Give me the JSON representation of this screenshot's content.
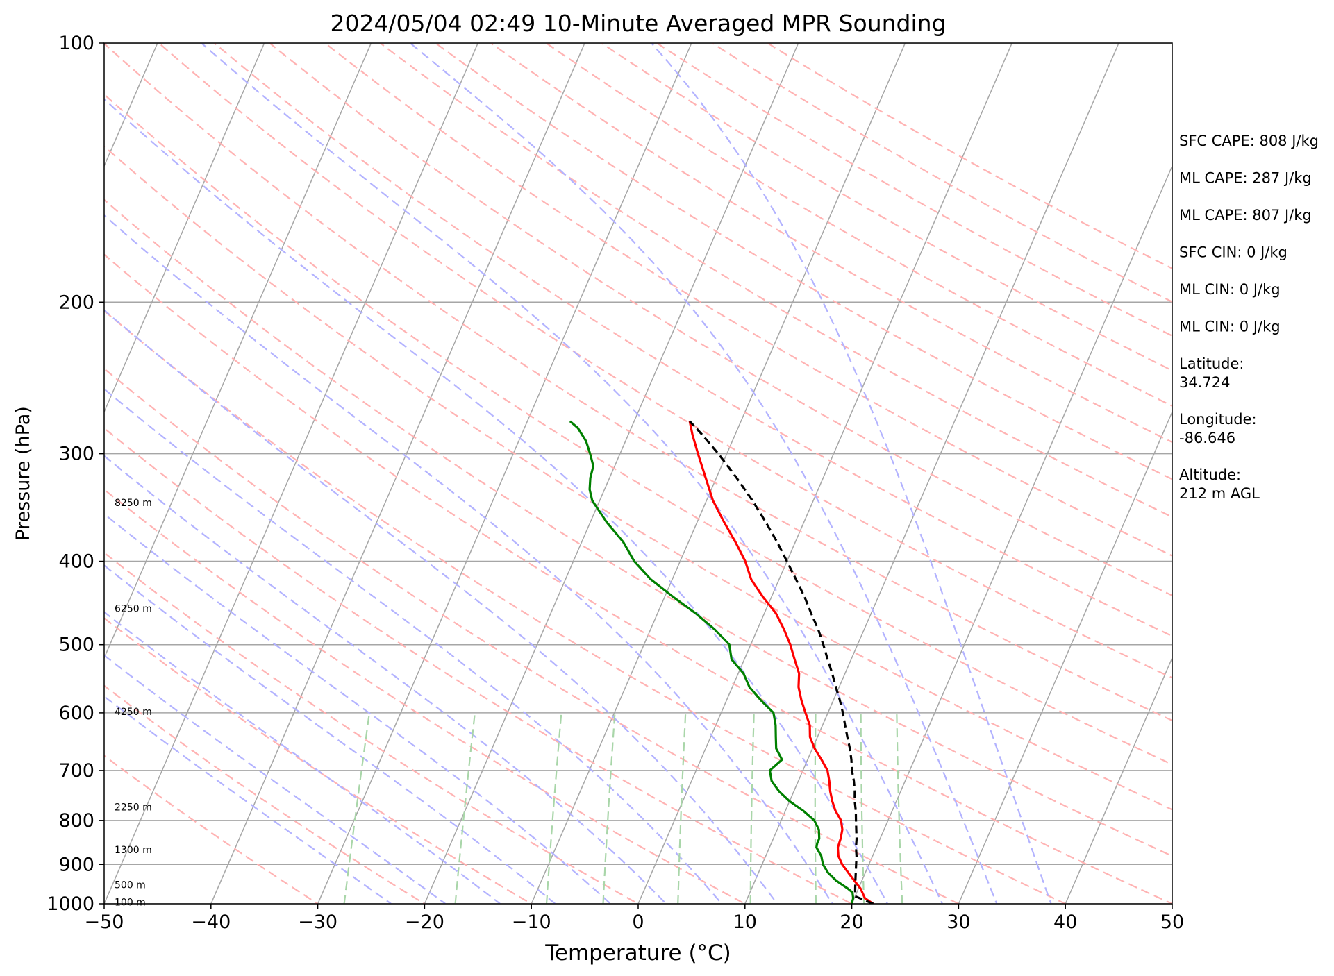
{
  "chart_data": {
    "type": "line",
    "chart_kind": "skew-t log-p",
    "title": "2024/05/04 02:49 10-Minute Averaged MPR Sounding",
    "xlabel": "Temperature (°C)",
    "ylabel": "Pressure (hPa)",
    "xlim": [
      -50,
      50
    ],
    "ylim": [
      1000,
      100
    ],
    "y_scale": "log",
    "grid": true,
    "x_ticks": [
      "−50",
      "−40",
      "−30",
      "−20",
      "−10",
      "0",
      "10",
      "20",
      "30",
      "40",
      "50"
    ],
    "y_ticks": [
      {
        "p": 1000,
        "label": "1000"
      },
      {
        "p": 900,
        "label": "900"
      },
      {
        "p": 800,
        "label": "800"
      },
      {
        "p": 700,
        "label": "700"
      },
      {
        "p": 600,
        "label": "600"
      },
      {
        "p": 500,
        "label": "500"
      },
      {
        "p": 400,
        "label": "400"
      },
      {
        "p": 300,
        "label": "300"
      },
      {
        "p": 200,
        "label": "200"
      },
      {
        "p": 100,
        "label": "100"
      }
    ],
    "height_labels": [
      {
        "p": 995,
        "label": "100 m"
      },
      {
        "p": 950,
        "label": "500 m"
      },
      {
        "p": 865,
        "label": "1300 m"
      },
      {
        "p": 772,
        "label": "2250 m"
      },
      {
        "p": 598,
        "label": "4250 m"
      },
      {
        "p": 454,
        "label": "6250 m"
      },
      {
        "p": 342,
        "label": "8250 m"
      }
    ],
    "series": [
      {
        "role": "temperature",
        "color": "#ff0000",
        "p": [
          1000,
          985,
          960,
          940,
          920,
          900,
          880,
          860,
          840,
          820,
          800,
          780,
          760,
          740,
          720,
          700,
          680,
          660,
          640,
          620,
          600,
          580,
          560,
          540,
          520,
          500,
          480,
          460,
          440,
          420,
          400,
          380,
          360,
          340,
          320,
          300,
          285,
          275
        ],
        "t": [
          22.0,
          21.0,
          20.2,
          19.3,
          18.4,
          17.5,
          16.8,
          16.4,
          16.3,
          16.1,
          15.6,
          14.7,
          14.0,
          13.4,
          12.9,
          12.3,
          11.3,
          10.2,
          9.3,
          8.8,
          7.9,
          7.0,
          6.2,
          5.7,
          4.7,
          3.7,
          2.5,
          1.1,
          -0.8,
          -2.6,
          -3.9,
          -5.6,
          -7.5,
          -9.4,
          -11.0,
          -12.7,
          -14.0,
          -14.8
        ]
      },
      {
        "role": "dewpoint",
        "color": "#008000",
        "p": [
          1000,
          985,
          970,
          960,
          940,
          920,
          900,
          880,
          860,
          850,
          840,
          820,
          800,
          780,
          760,
          740,
          720,
          700,
          680,
          660,
          640,
          620,
          600,
          580,
          560,
          540,
          520,
          500,
          480,
          460,
          440,
          420,
          400,
          380,
          360,
          340,
          330,
          320,
          310,
          300,
          290,
          280,
          275
        ],
        "t": [
          20.0,
          19.9,
          19.6,
          19.0,
          17.6,
          16.5,
          15.7,
          15.2,
          14.4,
          14.3,
          14.3,
          13.9,
          13.1,
          11.7,
          10.0,
          8.6,
          7.5,
          6.9,
          7.6,
          6.6,
          6.1,
          5.6,
          4.9,
          3.2,
          1.6,
          0.5,
          -1.2,
          -2.0,
          -4.0,
          -6.4,
          -9.2,
          -12.0,
          -14.3,
          -16.1,
          -18.5,
          -20.7,
          -21.4,
          -21.8,
          -22.0,
          -22.8,
          -23.7,
          -25.0,
          -26.0
        ]
      },
      {
        "role": "parcel",
        "color": "#000000",
        "style": "dashed",
        "p": [
          1000,
          980,
          960,
          940,
          920,
          900,
          880,
          860,
          840,
          820,
          800,
          780,
          760,
          740,
          720,
          700,
          680,
          660,
          640,
          620,
          600,
          580,
          560,
          540,
          520,
          500,
          480,
          460,
          440,
          420,
          400,
          380,
          360,
          340,
          320,
          300,
          285,
          275
        ],
        "t": [
          22.0,
          20.0,
          19.7,
          19.4,
          19.1,
          18.8,
          18.5,
          18.1,
          17.8,
          17.4,
          17.0,
          16.6,
          16.1,
          15.7,
          15.2,
          14.6,
          14.1,
          13.5,
          12.8,
          12.1,
          11.4,
          10.6,
          9.7,
          8.8,
          7.8,
          6.8,
          5.7,
          4.4,
          3.1,
          1.6,
          0.0,
          -1.7,
          -3.6,
          -5.7,
          -8.1,
          -10.8,
          -13.1,
          -14.8
        ]
      }
    ]
  },
  "side_panel": [
    "SFC CAPE: 808 J/kg",
    "ML CAPE: 287 J/kg",
    "ML CAPE: 807 J/kg",
    "SFC CIN: 0 J/kg",
    "ML CIN: 0 J/kg",
    "ML CIN: 0 J/kg",
    "Latitude:\n34.724",
    "Longitude:\n-86.646",
    "Altitude:\n212 m AGL"
  ],
  "colors": {
    "isotherm": "#a6a6a6",
    "isobar": "#a6a6a6",
    "dry_adiabat": "#ffb3b3",
    "moist_adiabat": "#b3b3ff",
    "mixing_ratio": "#a9d6a9"
  }
}
